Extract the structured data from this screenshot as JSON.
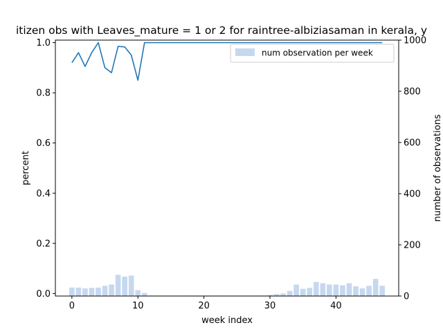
{
  "chart_data": {
    "type": "bar+line",
    "title": "itizen obs with Leaves_mature = 1 or 2 for raintree-albiziasaman in kerala, y",
    "xlabel": "week index",
    "ylabel_left": "percent",
    "ylabel_right": "number of observations",
    "xlim": [
      -2.5,
      49.5
    ],
    "ylim_left": [
      -0.01,
      1.01
    ],
    "ylim_right": [
      0,
      1000
    ],
    "xticks": [
      0,
      10,
      20,
      30,
      40
    ],
    "yticks_left": [
      "0.0",
      "0.2",
      "0.4",
      "0.6",
      "0.8",
      "1.0"
    ],
    "yticks_right": [
      "0",
      "200",
      "400",
      "600",
      "800",
      "1000"
    ],
    "legend": {
      "label": "num observation per week",
      "placement": "top-right"
    },
    "colors": {
      "line": "#1f77b4",
      "bar": "#aec7e8"
    },
    "x": [
      0,
      1,
      2,
      3,
      4,
      5,
      6,
      7,
      8,
      9,
      10,
      11,
      12,
      13,
      14,
      15,
      16,
      17,
      18,
      19,
      20,
      21,
      22,
      23,
      24,
      25,
      26,
      27,
      28,
      29,
      30,
      31,
      32,
      33,
      34,
      35,
      36,
      37,
      38,
      39,
      40,
      41,
      42,
      43,
      44,
      45,
      46,
      47
    ],
    "series": [
      {
        "axis": "right",
        "kind": "bar",
        "values": [
          33,
          33,
          30,
          32,
          33,
          40,
          45,
          83,
          76,
          80,
          23,
          12,
          2,
          2,
          2,
          2,
          2,
          2,
          2,
          2,
          2,
          2,
          2,
          2,
          2,
          2,
          2,
          2,
          2,
          2,
          4,
          8,
          10,
          20,
          45,
          28,
          32,
          55,
          50,
          45,
          45,
          42,
          50,
          38,
          30,
          40,
          67,
          40
        ]
      },
      {
        "axis": "left",
        "kind": "line",
        "values": [
          0.92,
          0.96,
          0.905,
          0.96,
          1.0,
          0.9,
          0.88,
          0.985,
          0.983,
          0.95,
          0.85,
          1.0,
          1.0,
          1.0,
          1.0,
          1.0,
          1.0,
          1.0,
          1.0,
          1.0,
          1.0,
          1.0,
          1.0,
          1.0,
          1.0,
          1.0,
          1.0,
          1.0,
          1.0,
          1.0,
          1.0,
          1.0,
          1.0,
          1.0,
          1.0,
          1.0,
          1.0,
          1.0,
          1.0,
          1.0,
          1.0,
          1.0,
          1.0,
          1.0,
          1.0,
          1.0,
          1.0,
          1.0
        ]
      }
    ]
  }
}
